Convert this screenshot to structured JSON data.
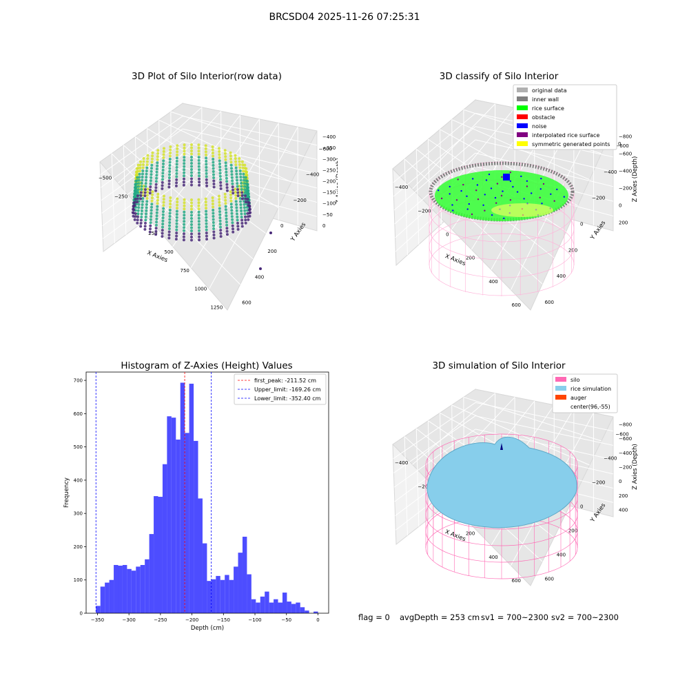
{
  "figure": {
    "suptitle": "BRCSD04 2025-11-26 07:25:31",
    "footer": {
      "flag": "flag = 0",
      "avg_depth": "avgDepth = 253 cm",
      "sv1": "sv1 = 700~2300",
      "sv2": "sv2 = 700~2300"
    }
  },
  "panel_raw": {
    "title": "3D Plot of Silo Interior(row data)",
    "xlabel": "X Axies",
    "ylabel": "Y Axies",
    "zlabel": "Z Axies (Depth)",
    "x_ticks": [
      "−500",
      "−250",
      "0",
      "250",
      "500",
      "750",
      "1000",
      "1250"
    ],
    "y_ticks": [
      "−600",
      "−400",
      "−200",
      "0",
      "200",
      "400",
      "600"
    ],
    "z_ticks": [
      "0",
      "−50",
      "−100",
      "−150",
      "−200",
      "−250",
      "−300",
      "−350",
      "−400"
    ],
    "colors": {
      "high": "#d4e22a",
      "mid": "#22a884",
      "low": "#482878"
    }
  },
  "panel_classify": {
    "title": "3D classify of Silo Interior",
    "xlabel": "X Axies",
    "ylabel": "Y Axies",
    "zlabel": "Z Axies (Depth)",
    "x_ticks": [
      "−400",
      "−200",
      "0",
      "200",
      "400",
      "600"
    ],
    "y_ticks": [
      "−600",
      "−400",
      "−200",
      "0",
      "200",
      "400",
      "600"
    ],
    "z_ticks": [
      "200",
      "0",
      "−200",
      "−400",
      "−600",
      "−800"
    ],
    "z_top_partial": "0",
    "legend": [
      {
        "label": "original data",
        "color": "#b0b0b0"
      },
      {
        "label": "inner wall",
        "color": "#808080"
      },
      {
        "label": "rice surface",
        "color": "#00ff00"
      },
      {
        "label": "obstacle",
        "color": "#ff0000"
      },
      {
        "label": "noise",
        "color": "#0000ff"
      },
      {
        "label": "interpolated rice surface",
        "color": "#800080"
      },
      {
        "label": "symmetric generated points",
        "color": "#ffff00"
      }
    ]
  },
  "panel_sim": {
    "title": "3D simulation of Silo Interior",
    "xlabel": "X Axies",
    "ylabel": "Y Axies",
    "zlabel": "Z Axies (Depth)",
    "x_ticks": [
      "−400",
      "−200",
      "0",
      "200",
      "400",
      "600"
    ],
    "y_ticks": [
      "−600",
      "−400",
      "−200",
      "0",
      "200",
      "400",
      "600"
    ],
    "z_ticks": [
      "400",
      "200",
      "0",
      "−200",
      "−400",
      "−600",
      "−800"
    ],
    "legend": [
      {
        "label": "silo",
        "color": "#ff69b4"
      },
      {
        "label": "rice simulation",
        "color": "#87ceeb"
      },
      {
        "label": "auger",
        "color": "#ff4500"
      },
      {
        "label": "center(96,-55)",
        "color": ""
      }
    ]
  },
  "chart_data": {
    "type": "bar",
    "title": "Histogram of Z-Axies (Height) Values",
    "xlabel": "Depth (cm)",
    "ylabel": "Frequency",
    "xlim": [
      -368,
      17
    ],
    "ylim": [
      0,
      725
    ],
    "x_ticks": [
      -350,
      -300,
      -250,
      -200,
      -150,
      -100,
      -50,
      0
    ],
    "x_tick_labels": [
      "−350",
      "−300",
      "−250",
      "−200",
      "−150",
      "−100",
      "−50",
      "0"
    ],
    "y_ticks": [
      0,
      100,
      200,
      300,
      400,
      500,
      600,
      700
    ],
    "bar_color": "#4d4dff",
    "bin_start": -352.4,
    "bin_width": 7.05,
    "values": [
      22,
      80,
      92,
      100,
      145,
      143,
      145,
      133,
      128,
      140,
      145,
      162,
      238,
      352,
      350,
      448,
      592,
      588,
      522,
      693,
      542,
      690,
      518,
      345,
      210,
      97,
      102,
      112,
      100,
      115,
      100,
      140,
      182,
      230,
      117,
      42,
      32,
      50,
      65,
      32,
      42,
      32,
      62,
      35,
      28,
      32,
      18,
      8,
      0,
      5,
      0
    ],
    "lines": [
      {
        "label": "first_peak: -211.52 cm",
        "x": -211.52,
        "color": "#ff0000"
      },
      {
        "label": "Upper_limit: -169.26 cm",
        "x": -169.26,
        "color": "#0000ff"
      },
      {
        "label": "Lower_limit: -352.40 cm",
        "x": -352.4,
        "color": "#0000ff"
      }
    ],
    "legend_position": "upper-right"
  }
}
